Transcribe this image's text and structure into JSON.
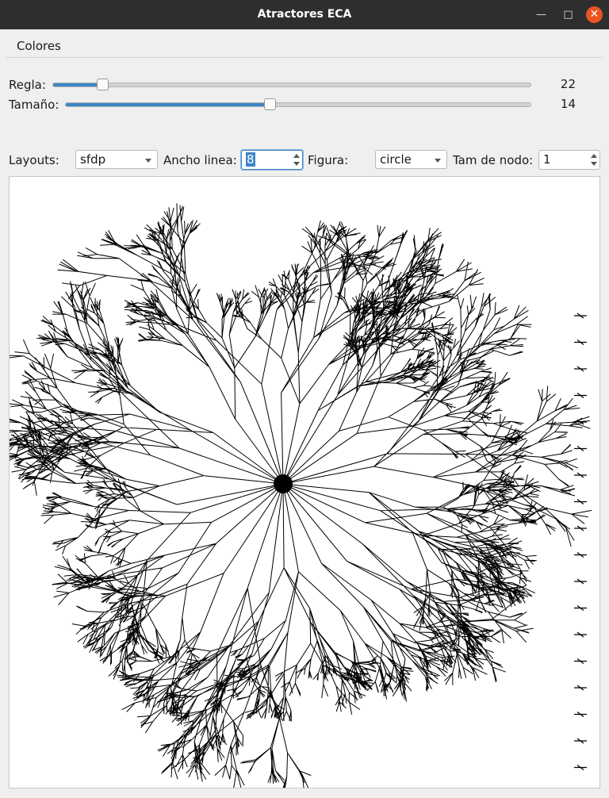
{
  "window": {
    "title": "Atractores ECA"
  },
  "menu": {
    "items": [
      "Colores"
    ]
  },
  "controls": {
    "regla": {
      "label": "Regla:",
      "value": "22",
      "fraction": 0.094
    },
    "tamano": {
      "label": "Tamaño:",
      "value": "14",
      "fraction": 0.435
    }
  },
  "toolbar": {
    "layouts_label": "Layouts:",
    "layouts_value": "sfdp",
    "ancho_label": "Ancho linea:",
    "ancho_value": "8",
    "figura_label": "Figura:",
    "figura_value": "circle",
    "tam_label": "Tam de nodo:",
    "tam_value": "1"
  },
  "graph": {
    "color": "#000000",
    "background": "#ffffff"
  }
}
